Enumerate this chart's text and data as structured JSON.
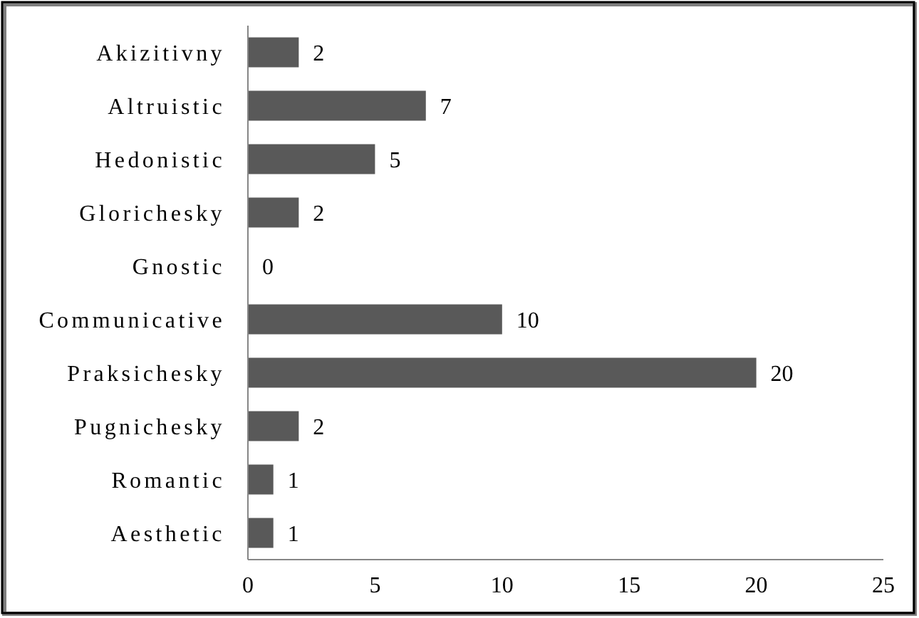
{
  "chart_data": {
    "type": "bar",
    "orientation": "horizontal",
    "categories": [
      "Akizitivny",
      "Altruistic",
      "Hedonistic",
      "Glorichesky",
      "Gnostic",
      "Communicative",
      "Praksichesky",
      "Pugnichesky",
      "Romantic",
      "Aesthetic"
    ],
    "values": [
      2,
      7,
      5,
      2,
      0,
      10,
      20,
      2,
      1,
      1
    ],
    "color": "#595959",
    "xlim": [
      0,
      25
    ],
    "xticks": [
      0,
      5,
      10,
      15,
      20,
      25
    ],
    "data_labels": true
  }
}
